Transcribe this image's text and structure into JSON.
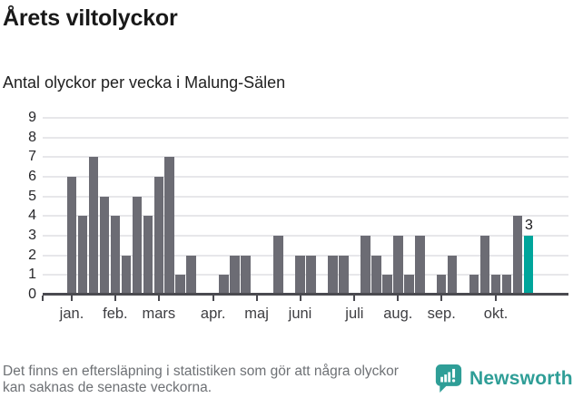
{
  "page": {
    "title": "Årets viltolyckor",
    "subtitle": "Antal olyckor per vecka i Malung-Sälen"
  },
  "footer": {
    "note": "Det finns en eftersläpning i statistiken som gör att några olyckor kan saknas de senaste veckorna.",
    "brand": "Newsworthy"
  },
  "colors": {
    "bar": "#6c6c74",
    "accent": "#00a59b",
    "axis": "#4a4a50",
    "gridline": "#e7e7ea",
    "brand_teal": "#2f9e97",
    "note_grey": "#6e7175",
    "text_dark": "#191919"
  },
  "chart_data": {
    "type": "bar",
    "title": "Årets viltolyckor",
    "subtitle": "Antal olyckor per vecka i Malung-Sälen",
    "x_unit": "vecka (weekly bars, zeros = weeks without accidents)",
    "values": [
      6,
      4,
      7,
      5,
      4,
      2,
      5,
      4,
      6,
      7,
      1,
      2,
      0,
      0,
      1,
      2,
      2,
      0,
      0,
      3,
      0,
      2,
      2,
      0,
      2,
      2,
      0,
      3,
      2,
      1,
      3,
      1,
      3,
      0,
      1,
      2,
      0,
      1,
      3,
      1,
      1,
      4,
      3
    ],
    "highlight": {
      "week": 43,
      "value": 3,
      "label": "3"
    },
    "month_ticks": [
      {
        "label": "jan.",
        "week": 1
      },
      {
        "label": "feb.",
        "week": 5
      },
      {
        "label": "mars",
        "week": 9
      },
      {
        "label": "apr.",
        "week": 14
      },
      {
        "label": "maj",
        "week": 18
      },
      {
        "label": "juni",
        "week": 22
      },
      {
        "label": "juli",
        "week": 27
      },
      {
        "label": "aug.",
        "week": 31
      },
      {
        "label": "sep.",
        "week": 35
      },
      {
        "label": "okt.",
        "week": 40
      }
    ],
    "ylim": [
      0,
      9
    ],
    "yticks": [
      0,
      1,
      2,
      3,
      4,
      5,
      6,
      7,
      8,
      9
    ],
    "grid": "horizontal",
    "legend": "none"
  }
}
